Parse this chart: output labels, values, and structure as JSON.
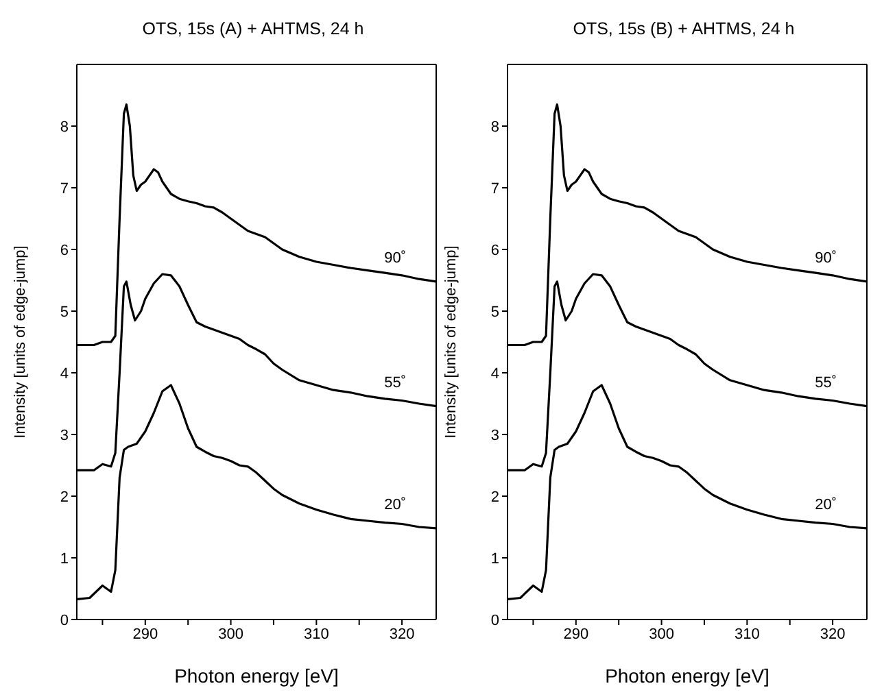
{
  "chart_data": [
    {
      "type": "line",
      "title": "OTS, 15s (A) + AHTMS, 24 h",
      "xlabel": "Photon energy [eV]",
      "ylabel": "Intensity [units of edge-jump]",
      "xlim": [
        282,
        324
      ],
      "ylim": [
        0,
        9
      ],
      "xticks": [
        {
          "value": 285,
          "label": null
        },
        290,
        {
          "value": 295,
          "label": null
        },
        300,
        {
          "value": 305,
          "label": null
        },
        310,
        {
          "value": 315,
          "label": null
        },
        320
      ],
      "yticks": [
        0,
        1,
        2,
        3,
        4,
        5,
        6,
        7,
        8
      ],
      "series": [
        {
          "name": "90˚",
          "color": "#000000",
          "x": [
            282,
            284,
            285,
            286,
            286.5,
            287,
            287.5,
            287.8,
            288.2,
            288.6,
            289,
            289.5,
            290,
            291,
            291.5,
            292,
            293,
            294,
            295,
            296,
            297,
            298,
            299,
            300,
            301,
            302,
            303,
            304,
            305,
            306,
            308,
            310,
            312,
            314,
            316,
            318,
            320,
            322,
            324
          ],
          "values": [
            4.45,
            4.45,
            4.5,
            4.5,
            4.6,
            6.5,
            8.2,
            8.35,
            8.0,
            7.2,
            6.95,
            7.05,
            7.1,
            7.3,
            7.25,
            7.1,
            6.9,
            6.82,
            6.78,
            6.75,
            6.7,
            6.68,
            6.6,
            6.5,
            6.4,
            6.3,
            6.25,
            6.2,
            6.1,
            6.0,
            5.88,
            5.8,
            5.75,
            5.7,
            5.66,
            5.62,
            5.58,
            5.52,
            5.48
          ]
        },
        {
          "name": "55˚",
          "color": "#000000",
          "x": [
            282,
            284,
            285,
            286,
            286.5,
            287,
            287.5,
            287.8,
            288.3,
            288.8,
            289.5,
            290,
            291,
            292,
            293,
            294,
            295,
            296,
            297,
            298,
            299,
            300,
            301,
            302,
            303,
            304,
            305,
            306,
            308,
            310,
            312,
            314,
            316,
            318,
            320,
            322,
            324
          ],
          "values": [
            2.42,
            2.42,
            2.52,
            2.48,
            2.7,
            4.0,
            5.4,
            5.48,
            5.1,
            4.85,
            5.0,
            5.2,
            5.45,
            5.6,
            5.58,
            5.4,
            5.1,
            4.82,
            4.75,
            4.7,
            4.65,
            4.6,
            4.55,
            4.45,
            4.38,
            4.3,
            4.15,
            4.05,
            3.88,
            3.8,
            3.72,
            3.68,
            3.62,
            3.58,
            3.55,
            3.5,
            3.46
          ]
        },
        {
          "name": "20˚",
          "color": "#000000",
          "x": [
            282,
            283.5,
            285,
            286,
            286.5,
            287,
            287.5,
            288,
            289,
            290,
            291,
            292,
            293,
            294,
            295,
            296,
            297,
            298,
            299,
            300,
            301,
            302,
            303,
            304,
            305,
            306,
            308,
            310,
            312,
            314,
            316,
            318,
            320,
            322,
            324
          ],
          "values": [
            0.33,
            0.35,
            0.55,
            0.45,
            0.8,
            2.3,
            2.75,
            2.8,
            2.85,
            3.05,
            3.35,
            3.7,
            3.8,
            3.5,
            3.1,
            2.8,
            2.72,
            2.65,
            2.62,
            2.57,
            2.5,
            2.48,
            2.38,
            2.25,
            2.12,
            2.02,
            1.88,
            1.78,
            1.7,
            1.63,
            1.6,
            1.57,
            1.55,
            1.5,
            1.48
          ]
        }
      ]
    },
    {
      "type": "line",
      "title": "OTS, 15s (B) + AHTMS, 24 h",
      "xlabel": "Photon energy [eV]",
      "ylabel": "Intensity [units of edge-jump]",
      "xlim": [
        282,
        324
      ],
      "ylim": [
        0,
        9
      ],
      "xticks": [
        {
          "value": 285,
          "label": null
        },
        290,
        {
          "value": 295,
          "label": null
        },
        300,
        {
          "value": 305,
          "label": null
        },
        310,
        {
          "value": 315,
          "label": null
        },
        320
      ],
      "yticks": [
        0,
        1,
        2,
        3,
        4,
        5,
        6,
        7,
        8
      ],
      "series": [
        {
          "name": "90˚",
          "color": "#000000",
          "x": [
            282,
            284,
            285,
            286,
            286.5,
            287,
            287.5,
            287.8,
            288.2,
            288.6,
            289,
            289.5,
            290,
            291,
            291.5,
            292,
            293,
            294,
            295,
            296,
            297,
            298,
            299,
            300,
            301,
            302,
            303,
            304,
            305,
            306,
            308,
            310,
            312,
            314,
            316,
            318,
            320,
            322,
            324
          ],
          "values": [
            4.45,
            4.45,
            4.5,
            4.5,
            4.6,
            6.5,
            8.2,
            8.35,
            8.0,
            7.2,
            6.95,
            7.05,
            7.1,
            7.3,
            7.25,
            7.1,
            6.9,
            6.82,
            6.78,
            6.75,
            6.7,
            6.68,
            6.6,
            6.5,
            6.4,
            6.3,
            6.25,
            6.2,
            6.1,
            6.0,
            5.88,
            5.8,
            5.75,
            5.7,
            5.66,
            5.62,
            5.58,
            5.52,
            5.48
          ]
        },
        {
          "name": "55˚",
          "color": "#000000",
          "x": [
            282,
            284,
            285,
            286,
            286.5,
            287,
            287.5,
            287.8,
            288.3,
            288.8,
            289.5,
            290,
            291,
            292,
            293,
            294,
            295,
            296,
            297,
            298,
            299,
            300,
            301,
            302,
            303,
            304,
            305,
            306,
            308,
            310,
            312,
            314,
            316,
            318,
            320,
            322,
            324
          ],
          "values": [
            2.42,
            2.42,
            2.52,
            2.48,
            2.7,
            4.0,
            5.4,
            5.48,
            5.1,
            4.85,
            5.0,
            5.2,
            5.45,
            5.6,
            5.58,
            5.4,
            5.1,
            4.82,
            4.75,
            4.7,
            4.65,
            4.6,
            4.55,
            4.45,
            4.38,
            4.3,
            4.15,
            4.05,
            3.88,
            3.8,
            3.72,
            3.68,
            3.62,
            3.58,
            3.55,
            3.5,
            3.46
          ]
        },
        {
          "name": "20˚",
          "color": "#000000",
          "x": [
            282,
            283.5,
            285,
            286,
            286.5,
            287,
            287.5,
            288,
            289,
            290,
            291,
            292,
            293,
            294,
            295,
            296,
            297,
            298,
            299,
            300,
            301,
            302,
            303,
            304,
            305,
            306,
            308,
            310,
            312,
            314,
            316,
            318,
            320,
            322,
            324
          ],
          "values": [
            0.33,
            0.35,
            0.55,
            0.45,
            0.8,
            2.3,
            2.75,
            2.8,
            2.85,
            3.05,
            3.35,
            3.7,
            3.8,
            3.5,
            3.1,
            2.8,
            2.72,
            2.65,
            2.62,
            2.57,
            2.5,
            2.48,
            2.38,
            2.25,
            2.12,
            2.02,
            1.88,
            1.78,
            1.7,
            1.63,
            1.6,
            1.57,
            1.55,
            1.5,
            1.48
          ]
        }
      ]
    }
  ]
}
